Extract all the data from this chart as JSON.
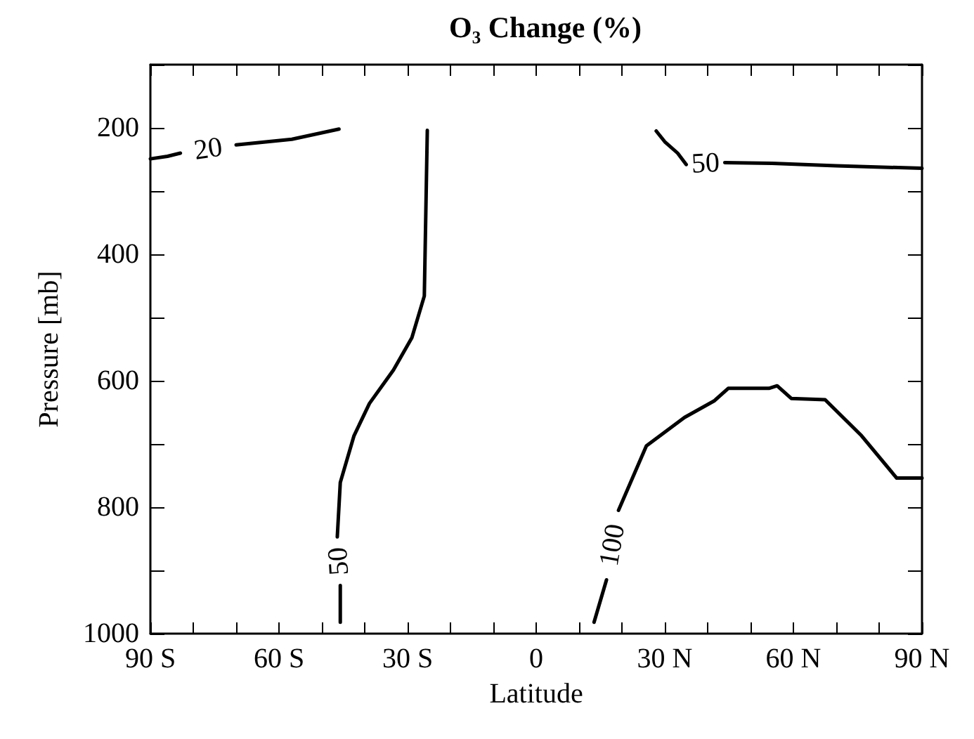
{
  "chart_data": {
    "type": "line",
    "title": "O₃ Change (%)",
    "xlabel": "Latitude",
    "ylabel": "Pressure [mb]",
    "xlim": [
      -90,
      90
    ],
    "xticks": [
      {
        "value": -90,
        "label": "90 S"
      },
      {
        "value": -80,
        "label": null
      },
      {
        "value": -70,
        "label": null
      },
      {
        "value": -60,
        "label": "60 S"
      },
      {
        "value": -50,
        "label": null
      },
      {
        "value": -40,
        "label": null
      },
      {
        "value": -30,
        "label": "30 S"
      },
      {
        "value": -20,
        "label": null
      },
      {
        "value": -10,
        "label": null
      },
      0,
      {
        "value": 10,
        "label": null
      },
      {
        "value": 20,
        "label": null
      },
      {
        "value": 30,
        "label": "30 N"
      },
      {
        "value": 40,
        "label": null
      },
      {
        "value": 50,
        "label": null
      },
      {
        "value": 60,
        "label": "60 N"
      },
      {
        "value": 70,
        "label": null
      },
      {
        "value": 80,
        "label": null
      },
      {
        "value": 90,
        "label": "90 N"
      }
    ],
    "ylim": [
      1000,
      100
    ],
    "yticks": [
      {
        "value": 100,
        "label": null
      },
      200,
      {
        "value": 300,
        "label": null
      },
      400,
      {
        "value": 500,
        "label": null
      },
      600,
      {
        "value": 700,
        "label": null
      },
      800,
      {
        "value": 900,
        "label": null
      },
      1000
    ],
    "grid": false,
    "marker": "none",
    "line_style": "solid",
    "series": [
      {
        "color": "#000000",
        "x": [
          -90,
          -86,
          -83,
          null,
          -70,
          -57,
          -46
        ],
        "values": [
          249,
          245,
          240,
          null,
          227,
          218,
          202
        ]
      },
      {
        "color": "#000000",
        "x": [
          -25.4,
          -26.1,
          -29,
          -33.3,
          -38.9,
          -42.5,
          -45.7,
          -46.4,
          null,
          -45.7,
          -45.7
        ],
        "values": [
          204,
          466,
          532,
          583,
          636,
          687,
          761,
          847,
          null,
          924,
          982
        ]
      },
      {
        "color": "#000000",
        "x": [
          28,
          30,
          33,
          35,
          null,
          44,
          55,
          70,
          90
        ],
        "values": [
          205,
          222,
          240,
          258,
          null,
          255,
          256,
          260,
          264
        ]
      },
      {
        "color": "#000000",
        "x": [
          13.5,
          16.4,
          null,
          19.2,
          25.7,
          34.6,
          41.5,
          44.8,
          54.3,
          56.2,
          59.5,
          67.4,
          75.9,
          84.1,
          90
        ],
        "values": [
          982,
          915,
          null,
          805,
          703,
          658,
          632,
          612,
          612,
          608,
          628,
          630,
          687,
          754,
          754
        ]
      }
    ],
    "annotations": [
      "20",
      "50",
      "50",
      "100"
    ]
  }
}
